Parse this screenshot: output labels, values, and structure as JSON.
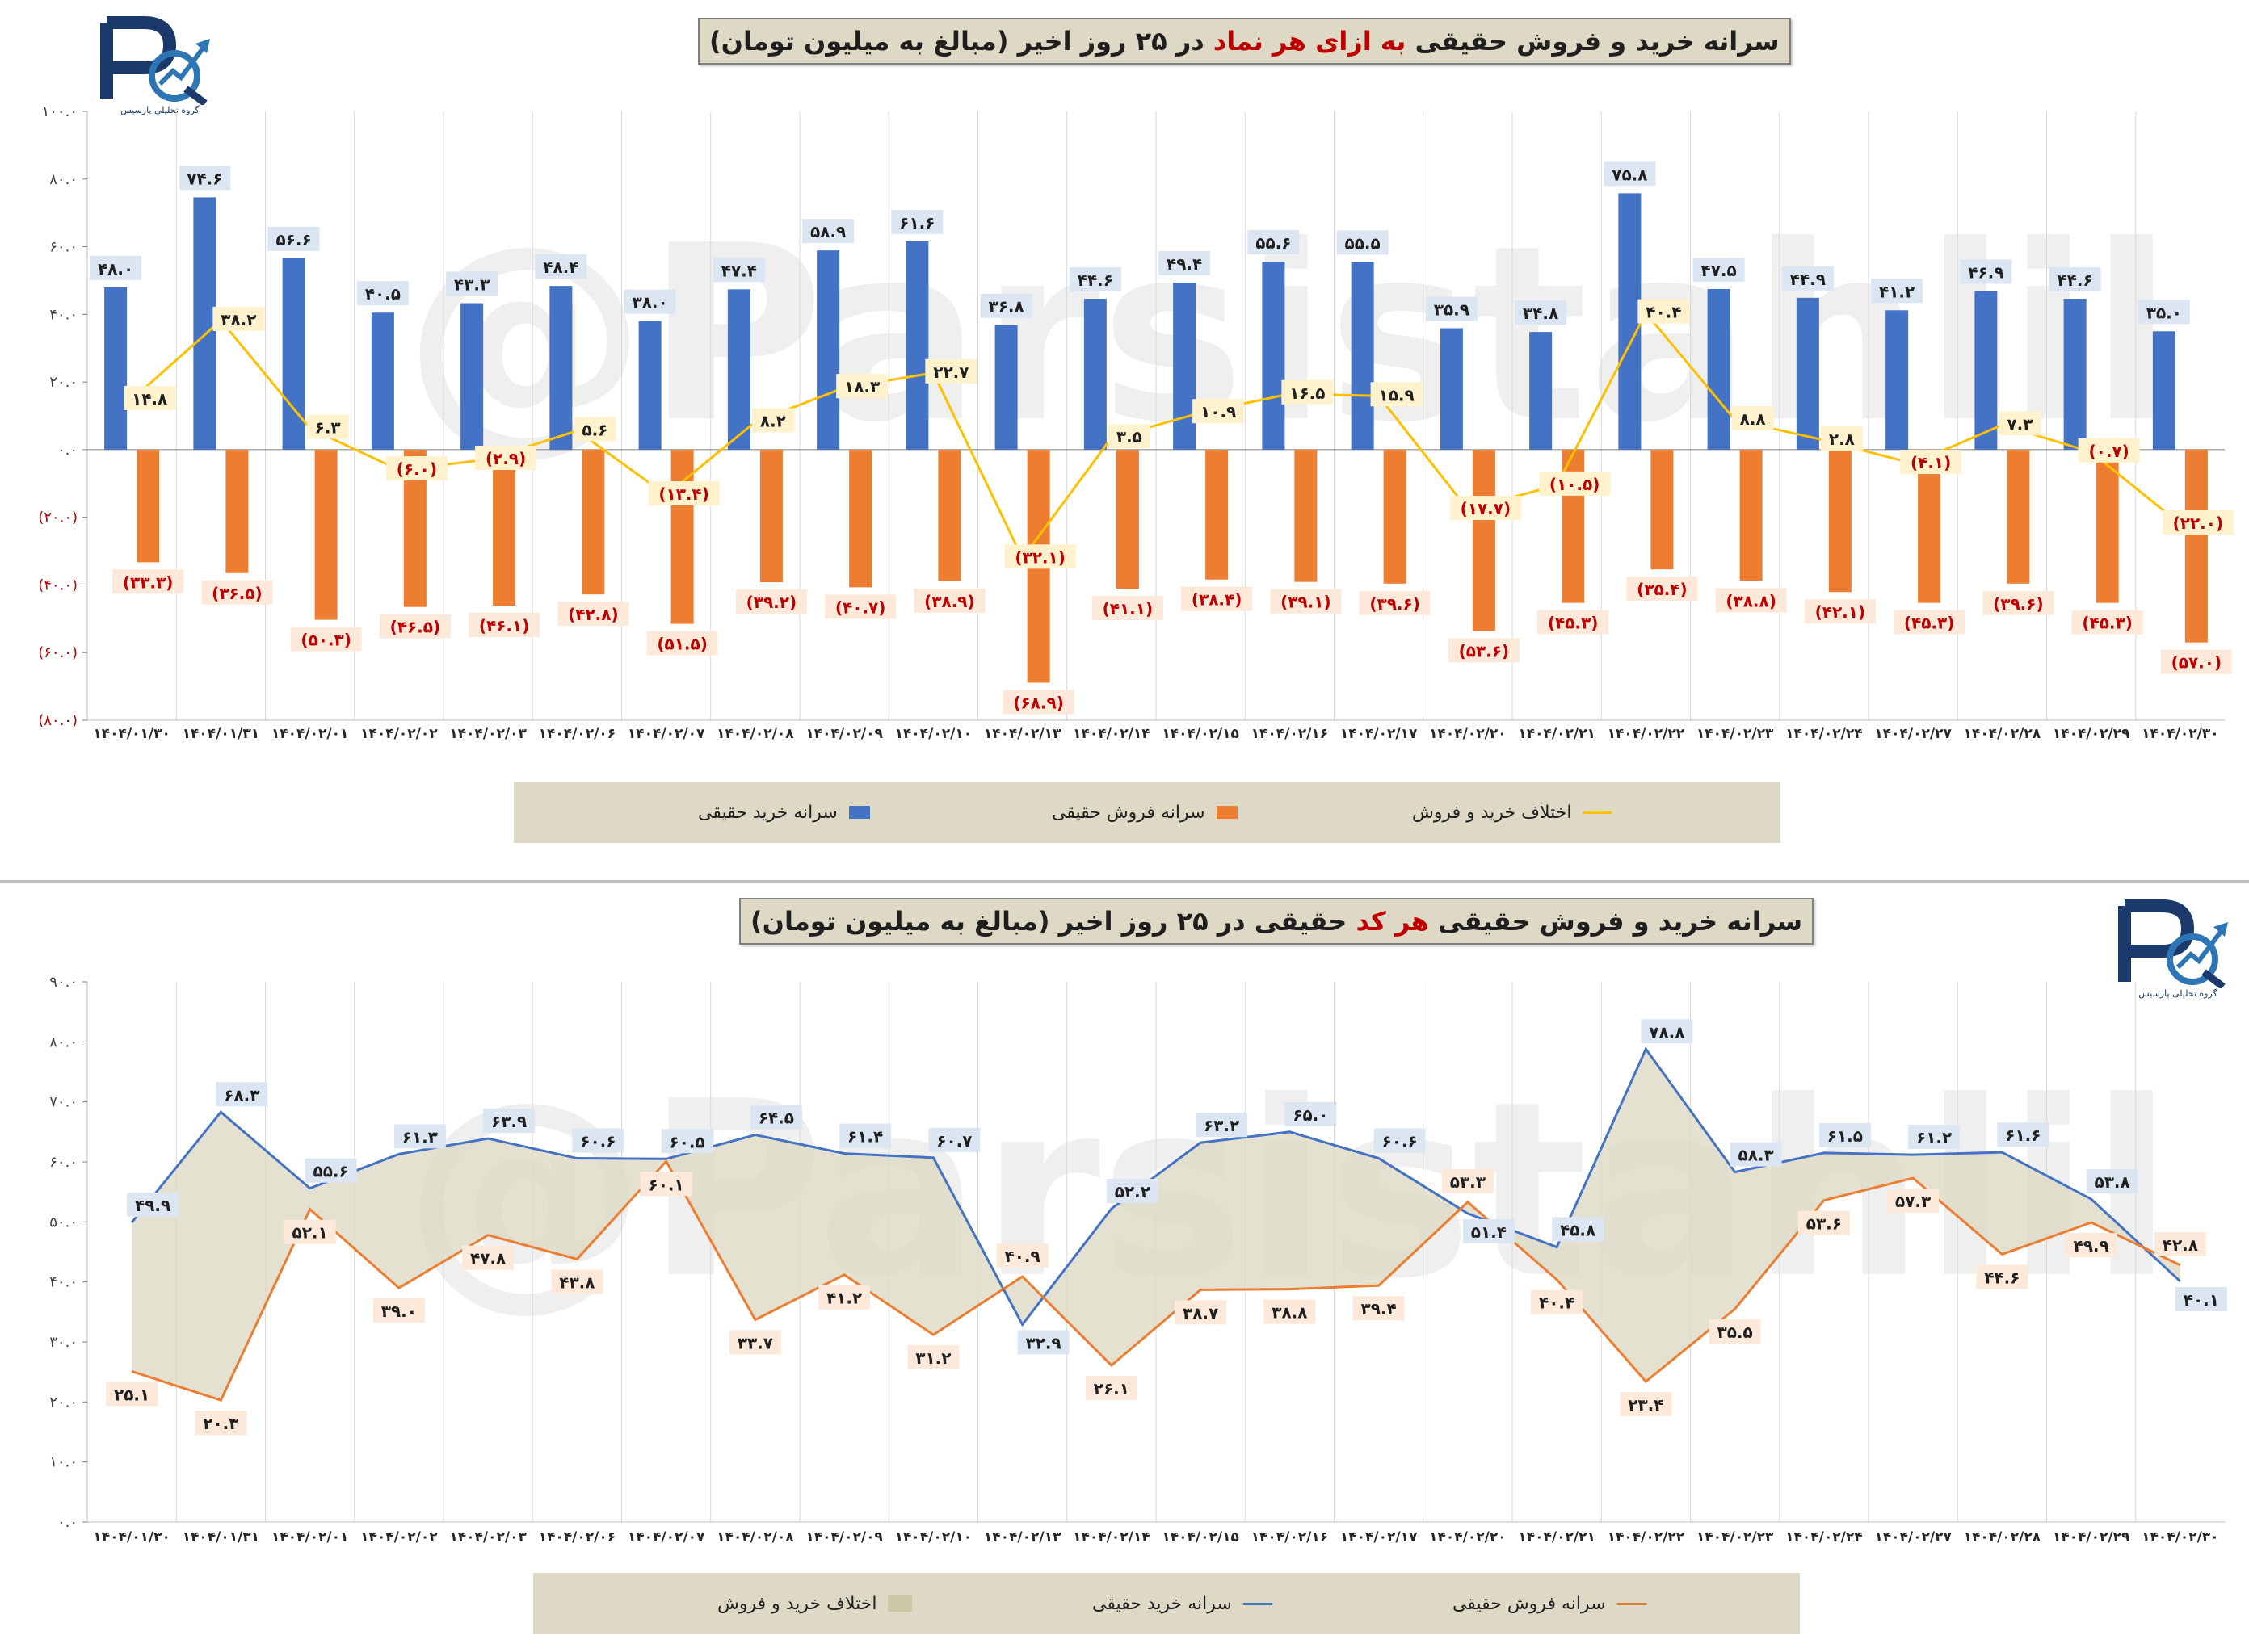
{
  "chart_data": [
    {
      "type": "bar",
      "title": "سرانه خرید و فروش حقیقی به ازای هر نماد در ۲۵ روز اخیر (مبالغ به میلیون تومان)",
      "title_parts": {
        "pre": "سرانه خرید و فروش حقیقی ",
        "highlight": "به ازای هر نماد",
        "post": " در ۲۵ روز اخیر (مبالغ به میلیون تومان)"
      },
      "categories": [
        "۱۴۰۴/۰۱/۳۰",
        "۱۴۰۴/۰۱/۳۱",
        "۱۴۰۴/۰۲/۰۱",
        "۱۴۰۴/۰۲/۰۲",
        "۱۴۰۴/۰۲/۰۳",
        "۱۴۰۴/۰۲/۰۶",
        "۱۴۰۴/۰۲/۰۷",
        "۱۴۰۴/۰۲/۰۸",
        "۱۴۰۴/۰۲/۰۹",
        "۱۴۰۴/۰۲/۱۰",
        "۱۴۰۴/۰۲/۱۳",
        "۱۴۰۴/۰۲/۱۴",
        "۱۴۰۴/۰۲/۱۵",
        "۱۴۰۴/۰۲/۱۶",
        "۱۴۰۴/۰۲/۱۷",
        "۱۴۰۴/۰۲/۲۰",
        "۱۴۰۴/۰۲/۲۱",
        "۱۴۰۴/۰۲/۲۲",
        "۱۴۰۴/۰۲/۲۳",
        "۱۴۰۴/۰۲/۲۴",
        "۱۴۰۴/۰۲/۲۷",
        "۱۴۰۴/۰۲/۲۸",
        "۱۴۰۴/۰۲/۲۹",
        "۱۴۰۴/۰۲/۳۰"
      ],
      "ylim": [
        -80,
        100
      ],
      "yticks": [
        -80,
        -60,
        -40,
        -20,
        0,
        20,
        40,
        60,
        80,
        100
      ],
      "ytick_labels": [
        "(۸۰.۰)",
        "(۶۰.۰)",
        "(۴۰.۰)",
        "(۲۰.۰)",
        "۰.۰",
        "۲۰.۰",
        "۴۰.۰",
        "۶۰.۰",
        "۸۰.۰",
        "۱۰۰.۰"
      ],
      "series": [
        {
          "name": "سرانه خرید حقیقی",
          "kind": "bar",
          "color": "#4472c4",
          "values": [
            48.0,
            74.6,
            56.6,
            40.5,
            43.3,
            48.4,
            38.0,
            47.4,
            58.9,
            61.6,
            36.8,
            44.6,
            49.4,
            55.6,
            55.5,
            35.9,
            34.8,
            75.8,
            47.5,
            44.9,
            41.2,
            46.9,
            44.6,
            35.0
          ],
          "labels": [
            "۴۸.۰",
            "۷۴.۶",
            "۵۶.۶",
            "۴۰.۵",
            "۴۳.۳",
            "۴۸.۴",
            "۳۸.۰",
            "۴۷.۴",
            "۵۸.۹",
            "۶۱.۶",
            "۳۶.۸",
            "۴۴.۶",
            "۴۹.۴",
            "۵۵.۶",
            "۵۵.۵",
            "۳۵.۹",
            "۳۴.۸",
            "۷۵.۸",
            "۴۷.۵",
            "۴۴.۹",
            "۴۱.۲",
            "۴۶.۹",
            "۴۴.۶",
            "۳۵.۰"
          ]
        },
        {
          "name": "سرانه فروش حقیقی",
          "kind": "bar",
          "color": "#ed7d31",
          "values": [
            -33.3,
            -36.5,
            -50.3,
            -46.5,
            -46.1,
            -42.8,
            -51.5,
            -39.2,
            -40.7,
            -38.9,
            -68.9,
            -41.1,
            -38.4,
            -39.1,
            -39.6,
            -53.6,
            -45.3,
            -35.4,
            -38.8,
            -42.1,
            -45.3,
            -39.6,
            -45.3,
            -57.0
          ],
          "labels": [
            "(۳۳.۳)",
            "(۳۶.۵)",
            "(۵۰.۳)",
            "(۴۶.۵)",
            "(۴۶.۱)",
            "(۴۲.۸)",
            "(۵۱.۵)",
            "(۳۹.۲)",
            "(۴۰.۷)",
            "(۳۸.۹)",
            "(۶۸.۹)",
            "(۴۱.۱)",
            "(۳۸.۴)",
            "(۳۹.۱)",
            "(۳۹.۶)",
            "(۵۳.۶)",
            "(۴۵.۳)",
            "(۳۵.۴)",
            "(۳۸.۸)",
            "(۴۲.۱)",
            "(۴۵.۳)",
            "(۳۹.۶)",
            "(۴۵.۳)",
            "(۵۷.۰)"
          ]
        },
        {
          "name": "اختلاف خرید و فروش",
          "kind": "line",
          "color": "#ffc000",
          "values": [
            14.8,
            38.2,
            6.3,
            -6.0,
            -2.9,
            5.6,
            -13.4,
            8.2,
            18.3,
            22.7,
            -32.1,
            3.5,
            10.9,
            16.5,
            15.9,
            -17.7,
            -10.5,
            40.4,
            8.8,
            2.8,
            -4.1,
            7.3,
            -0.7,
            -22.0
          ],
          "labels": [
            "۱۴.۸",
            "۳۸.۲",
            "۶.۳",
            "(۶.۰)",
            "(۲.۹)",
            "۵.۶",
            "(۱۳.۴)",
            "۸.۲",
            "۱۸.۳",
            "۲۲.۷",
            "(۳۲.۱)",
            "۳.۵",
            "۱۰.۹",
            "۱۶.۵",
            "۱۵.۹",
            "(۱۷.۷)",
            "(۱۰.۵)",
            "۴۰.۴",
            "۸.۸",
            "۲.۸",
            "(۴.۱)",
            "۷.۳",
            "(۰.۷)",
            "(۲۲.۰)"
          ]
        }
      ],
      "legend": [
        "سرانه خرید حقیقی",
        "سرانه فروش حقیقی",
        "اختلاف خرید و فروش"
      ]
    },
    {
      "type": "area",
      "title": "سرانه خرید و فروش حقیقی هر کد حقیقی در ۲۵ روز اخیر (مبالغ به میلیون تومان)",
      "title_parts": {
        "pre": "سرانه خرید و فروش حقیقی ",
        "highlight": "هر کد",
        "post": " حقیقی در ۲۵ روز اخیر (مبالغ به میلیون تومان)"
      },
      "categories": [
        "۱۴۰۴/۰۱/۳۰",
        "۱۴۰۴/۰۱/۳۱",
        "۱۴۰۴/۰۲/۰۱",
        "۱۴۰۴/۰۲/۰۲",
        "۱۴۰۴/۰۲/۰۳",
        "۱۴۰۴/۰۲/۰۶",
        "۱۴۰۴/۰۲/۰۷",
        "۱۴۰۴/۰۲/۰۸",
        "۱۴۰۴/۰۲/۰۹",
        "۱۴۰۴/۰۲/۱۰",
        "۱۴۰۴/۰۲/۱۳",
        "۱۴۰۴/۰۲/۱۴",
        "۱۴۰۴/۰۲/۱۵",
        "۱۴۰۴/۰۲/۱۶",
        "۱۴۰۴/۰۲/۱۷",
        "۱۴۰۴/۰۲/۲۰",
        "۱۴۰۴/۰۲/۲۱",
        "۱۴۰۴/۰۲/۲۲",
        "۱۴۰۴/۰۲/۲۳",
        "۱۴۰۴/۰۲/۲۴",
        "۱۴۰۴/۰۲/۲۷",
        "۱۴۰۴/۰۲/۲۸",
        "۱۴۰۴/۰۲/۲۹",
        "۱۴۰۴/۰۲/۳۰"
      ],
      "ylim": [
        0,
        90
      ],
      "yticks": [
        0,
        10,
        20,
        30,
        40,
        50,
        60,
        70,
        80,
        90
      ],
      "ytick_labels": [
        "۰.۰",
        "۱۰.۰",
        "۲۰.۰",
        "۳۰.۰",
        "۴۰.۰",
        "۵۰.۰",
        "۶۰.۰",
        "۷۰.۰",
        "۸۰.۰",
        "۹۰.۰"
      ],
      "series": [
        {
          "name": "سرانه خرید حقیقی",
          "kind": "line",
          "color": "#4472c4",
          "values": [
            49.9,
            68.3,
            55.6,
            61.3,
            63.9,
            60.6,
            60.5,
            64.5,
            61.4,
            60.7,
            32.9,
            52.2,
            63.2,
            65.0,
            60.6,
            51.4,
            45.8,
            78.8,
            58.3,
            61.5,
            61.2,
            61.6,
            53.8,
            40.1
          ],
          "labels": [
            "۴۹.۹",
            "۶۸.۳",
            "۵۵.۶",
            "۶۱.۳",
            "۶۳.۹",
            "۶۰.۶",
            "۶۰.۵",
            "۶۴.۵",
            "۶۱.۴",
            "۶۰.۷",
            "۳۲.۹",
            "۵۲.۲",
            "۶۳.۲",
            "۶۵.۰",
            "۶۰.۶",
            "۵۱.۴",
            "۴۵.۸",
            "۷۸.۸",
            "۵۸.۳",
            "۶۱.۵",
            "۶۱.۲",
            "۶۱.۶",
            "۵۳.۸",
            "۴۰.۱"
          ]
        },
        {
          "name": "سرانه فروش حقیقی",
          "kind": "line",
          "color": "#ed7d31",
          "values": [
            25.1,
            20.3,
            52.1,
            39.0,
            47.8,
            43.8,
            60.1,
            33.7,
            41.2,
            31.2,
            40.9,
            26.1,
            38.7,
            38.8,
            39.4,
            53.3,
            40.4,
            23.4,
            35.5,
            53.6,
            57.3,
            44.6,
            49.9,
            42.8
          ],
          "labels": [
            "۲۵.۱",
            "۲۰.۳",
            "۵۲.۱",
            "۳۹.۰",
            "۴۷.۸",
            "۴۳.۸",
            "۶۰.۱",
            "۳۳.۷",
            "۴۱.۲",
            "۳۱.۲",
            "۴۰.۹",
            "۲۶.۱",
            "۳۸.۷",
            "۳۸.۸",
            "۳۹.۴",
            "۵۳.۳",
            "۴۰.۴",
            "۲۳.۴",
            "۳۵.۵",
            "۵۳.۶",
            "۵۷.۳",
            "۴۴.۶",
            "۴۹.۹",
            "۴۲.۸"
          ]
        },
        {
          "name": "اختلاف خرید و فروش",
          "kind": "area",
          "color": "#ddd9c4"
        }
      ],
      "legend": [
        "اختلاف خرید و فروش",
        "سرانه خرید حقیقی",
        "سرانه فروش حقیقی"
      ]
    }
  ],
  "logo": {
    "text": "گروه تحلیلی پارسیس"
  },
  "watermark": "@Parsistahlil",
  "colors": {
    "buy": "#4472c4",
    "sell": "#ed7d31",
    "diff_line": "#ffc000",
    "legend_bg": "#ddd9c4",
    "sell_label": "#c00000"
  }
}
